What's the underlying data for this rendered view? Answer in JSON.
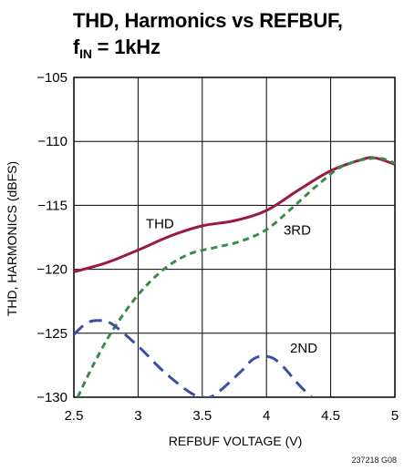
{
  "title_line1": "THD, Harmonics vs REFBUF,",
  "title_line2_prefix": "f",
  "title_line2_sub": "IN",
  "title_line2_suffix": " = 1kHz",
  "figure_id": "237218 G08",
  "chart_data": {
    "type": "line",
    "title": "THD, Harmonics vs REFBUF, fIN = 1kHz",
    "xlabel": "REFBUF VOLTAGE (V)",
    "ylabel": "THD, HARMONICS (dBFS)",
    "xlim": [
      2.5,
      5
    ],
    "ylim": [
      -130,
      -105
    ],
    "x_ticks": [
      2.5,
      3,
      3.5,
      4,
      4.5,
      5
    ],
    "x_tick_labels": [
      "2.5",
      "3",
      "3.5",
      "4",
      "4.5",
      "5"
    ],
    "y_ticks": [
      -105,
      -110,
      -115,
      -120,
      -125,
      -130
    ],
    "y_tick_labels": [
      "−105",
      "−110",
      "−115",
      "−120",
      "−125",
      "−130"
    ],
    "grid": true,
    "legend": "none (inline curve labels)",
    "series": [
      {
        "name": "THD",
        "style": "solid",
        "color": "#9b1b3e",
        "x": [
          2.5,
          2.75,
          3.0,
          3.25,
          3.5,
          3.75,
          4.0,
          4.25,
          4.5,
          4.75,
          4.85,
          5.0
        ],
        "y": [
          -120.2,
          -119.5,
          -118.5,
          -117.4,
          -116.6,
          -116.2,
          -115.4,
          -113.8,
          -112.3,
          -111.4,
          -111.3,
          -111.8
        ]
      },
      {
        "name": "3RD",
        "style": "dashed",
        "color": "#3a8a4a",
        "x": [
          2.53,
          2.65,
          2.8,
          3.0,
          3.2,
          3.4,
          3.6,
          3.8,
          4.0,
          4.2,
          4.4,
          4.6,
          4.85,
          5.0
        ],
        "y": [
          -130.0,
          -127.5,
          -124.8,
          -122.0,
          -120.0,
          -118.8,
          -118.3,
          -117.8,
          -116.9,
          -115.2,
          -113.4,
          -111.9,
          -111.3,
          -111.7
        ]
      },
      {
        "name": "2ND",
        "style": "dashed",
        "color": "#3b4fa0",
        "x": [
          2.5,
          2.6,
          2.7,
          2.8,
          3.0,
          3.2,
          3.4,
          3.5,
          3.6,
          3.8,
          3.9,
          4.0,
          4.1,
          4.25,
          4.35
        ],
        "y": [
          -125.1,
          -124.2,
          -124.0,
          -124.3,
          -126.0,
          -128.0,
          -129.6,
          -130.0,
          -129.8,
          -128.0,
          -127.0,
          -126.8,
          -127.3,
          -129.0,
          -130.0
        ]
      }
    ],
    "annotations": [
      {
        "text": "THD",
        "x": 3.17,
        "y": -116.8
      },
      {
        "text": "3RD",
        "x": 4.24,
        "y": -117.3
      },
      {
        "text": "2ND",
        "x": 4.29,
        "y": -126.5
      }
    ],
    "grid_color": "#000000",
    "axis_color": "#000000"
  }
}
